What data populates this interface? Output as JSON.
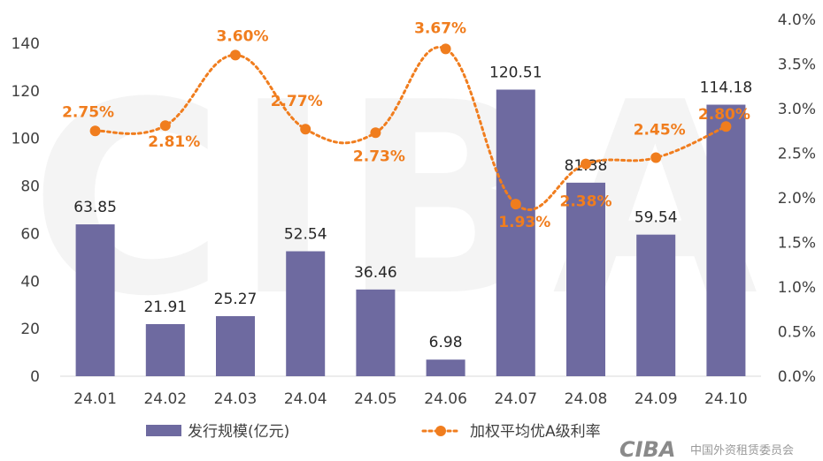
{
  "chart_data": {
    "type": "bar",
    "categories": [
      "24.01",
      "24.02",
      "24.03",
      "24.04",
      "24.05",
      "24.06",
      "24.07",
      "24.08",
      "24.09",
      "24.10"
    ],
    "series": [
      {
        "name": "发行规模(亿元)",
        "type": "bar",
        "axis": "left",
        "values": [
          63.85,
          21.91,
          25.27,
          52.54,
          36.46,
          6.98,
          120.51,
          81.38,
          59.54,
          114.18
        ],
        "labels": [
          "63.85",
          "21.91",
          "25.27",
          "52.54",
          "36.46",
          "6.98",
          "120.51",
          "81.38",
          "59.54",
          "114.18"
        ],
        "color": "#6e6aa0"
      },
      {
        "name": "加权平均优A级利率",
        "type": "line",
        "axis": "right",
        "values": [
          2.75,
          2.81,
          3.6,
          2.77,
          2.73,
          3.67,
          1.93,
          2.38,
          2.45,
          2.8
        ],
        "labels": [
          "2.75%",
          "2.81%",
          "3.60%",
          "2.77%",
          "2.73%",
          "3.67%",
          "1.93%",
          "2.38%",
          "2.45%",
          "2.80%"
        ],
        "color": "#f07d1e",
        "line_style": "dotted"
      }
    ],
    "left_axis": {
      "ylim": [
        0,
        140
      ],
      "ticks": [
        "0",
        "20",
        "40",
        "60",
        "80",
        "100",
        "120",
        "140"
      ]
    },
    "right_axis": {
      "ylim": [
        0,
        4.0
      ],
      "ticks": [
        "0.0%",
        "0.5%",
        "1.0%",
        "1.5%",
        "2.0%",
        "2.5%",
        "3.0%",
        "3.5%",
        "4.0%"
      ]
    },
    "grid": false,
    "legend_position": "bottom",
    "watermark": {
      "logo_text": "CIBA",
      "org_text": "中国外资租赁委员会"
    }
  }
}
